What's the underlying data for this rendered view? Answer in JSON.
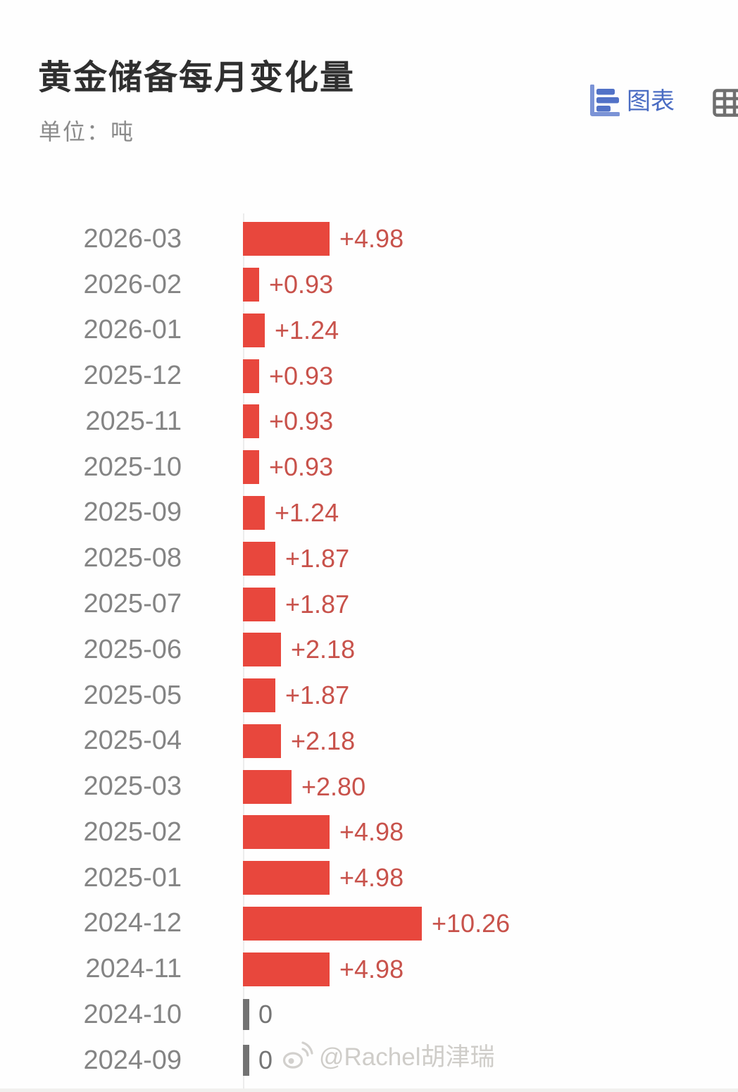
{
  "page": {
    "title": "黄金储备每月变化量",
    "subtitle": "单位：吨"
  },
  "toolbar": {
    "chart_tab_label": "图表",
    "chart_icon": "horizontal-bar-chart-icon",
    "table_icon": "table-grid-icon"
  },
  "watermark": {
    "icon": "weibo-icon",
    "text": "@Rachel胡津瑞"
  },
  "colors": {
    "bar_red": "#e8473d",
    "value_text_red": "#c8524b",
    "category_text_gray": "#848484",
    "zero_tick_gray": "#737373",
    "accent_blue": "#4a6cc3",
    "title_dark": "#2f2f2f"
  },
  "chart_data": {
    "type": "bar",
    "orientation": "horizontal",
    "title": "黄金储备每月变化量",
    "unit_label": "单位：吨",
    "xlabel": "",
    "ylabel": "",
    "xmax": 10.26,
    "grid": false,
    "legend": false,
    "categories": [
      "2026-03",
      "2026-02",
      "2026-01",
      "2025-12",
      "2025-11",
      "2025-10",
      "2025-09",
      "2025-08",
      "2025-07",
      "2025-06",
      "2025-05",
      "2025-04",
      "2025-03",
      "2025-02",
      "2025-01",
      "2024-12",
      "2024-11",
      "2024-10",
      "2024-09"
    ],
    "values": [
      4.98,
      0.93,
      1.24,
      0.93,
      0.93,
      0.93,
      1.24,
      1.87,
      1.87,
      2.18,
      1.87,
      2.18,
      2.8,
      4.98,
      4.98,
      10.26,
      4.98,
      0,
      0
    ],
    "value_labels": [
      "+4.98",
      "+0.93",
      "+1.24",
      "+0.93",
      "+0.93",
      "+0.93",
      "+1.24",
      "+1.87",
      "+1.87",
      "+2.18",
      "+1.87",
      "+2.18",
      "+2.80",
      "+4.98",
      "+4.98",
      "+10.26",
      "+4.98",
      "0",
      "0"
    ]
  }
}
